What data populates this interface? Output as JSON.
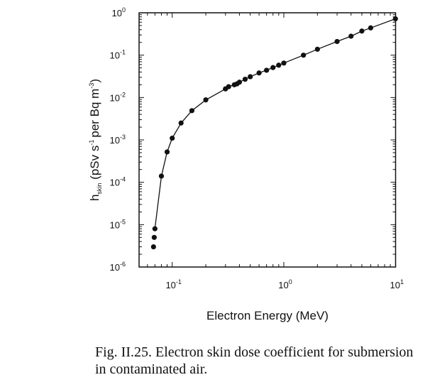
{
  "chart_data": {
    "type": "line",
    "title": "",
    "xlabel": "Electron Energy (MeV)",
    "ylabel": {
      "base": "h",
      "sub": "skin",
      "text": " (pSv s",
      "sup1": "-1",
      "text2": "per Bq m",
      "sup2": "-3",
      "close": ")"
    },
    "xscale": "log",
    "yscale": "log",
    "xlim": [
      0.05,
      10
    ],
    "ylim": [
      1e-06,
      1
    ],
    "xticks": [
      {
        "base": "10",
        "exp": "-1",
        "value": 0.1
      },
      {
        "base": "10",
        "exp": "0",
        "value": 1
      },
      {
        "base": "10",
        "exp": "1",
        "value": 10
      }
    ],
    "yticks": [
      {
        "base": "10",
        "exp": "0",
        "value": 1
      },
      {
        "base": "10",
        "exp": "-1",
        "value": 0.1
      },
      {
        "base": "10",
        "exp": "-2",
        "value": 0.01
      },
      {
        "base": "10",
        "exp": "-3",
        "value": 0.001
      },
      {
        "base": "10",
        "exp": "-4",
        "value": 0.0001
      },
      {
        "base": "10",
        "exp": "-5",
        "value": 1e-05
      },
      {
        "base": "10",
        "exp": "-6",
        "value": 1e-06
      }
    ],
    "grid": false,
    "series": [
      {
        "name": "h_skin",
        "marker": "circle",
        "x": [
          0.068,
          0.069,
          0.07,
          0.08,
          0.09,
          0.1,
          0.12,
          0.15,
          0.2,
          0.3,
          0.32,
          0.36,
          0.38,
          0.4,
          0.45,
          0.5,
          0.6,
          0.7,
          0.8,
          0.9,
          1.0,
          1.5,
          2.0,
          3.0,
          4.0,
          5.0,
          6.0,
          10.0
        ],
        "y": [
          3e-06,
          5e-06,
          8e-06,
          0.00014,
          0.00052,
          0.0011,
          0.0025,
          0.0049,
          0.0088,
          0.016,
          0.018,
          0.02,
          0.021,
          0.023,
          0.027,
          0.031,
          0.038,
          0.044,
          0.051,
          0.058,
          0.065,
          0.1,
          0.138,
          0.21,
          0.28,
          0.37,
          0.44,
          0.72
        ]
      }
    ]
  },
  "caption": "Fig.  II.25.  Electron skin dose coefficient for submersion in contaminated air."
}
